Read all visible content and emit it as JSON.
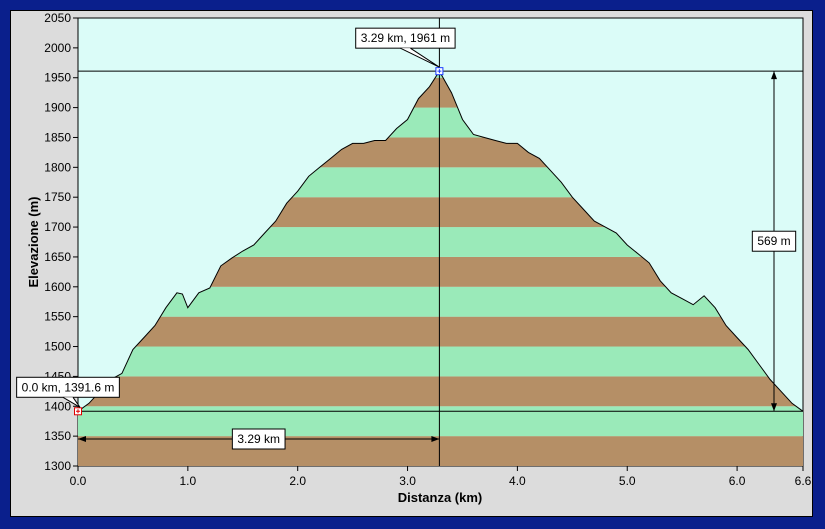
{
  "chart_data": {
    "type": "area",
    "xlabel": "Distanza  (km)",
    "ylabel": "Elevazione  (m)",
    "xlim": [
      0,
      6.6
    ],
    "ylim": [
      1300,
      2050
    ],
    "x_ticks": [
      "0.0",
      "1.0",
      "2.0",
      "3.0",
      "4.0",
      "5.0",
      "6.0",
      "6.6"
    ],
    "x_tick_values": [
      0,
      1,
      2,
      3,
      4,
      5,
      6,
      6.6
    ],
    "y_ticks": [
      1300,
      1350,
      1400,
      1450,
      1500,
      1550,
      1600,
      1650,
      1700,
      1750,
      1800,
      1850,
      1900,
      1950,
      2000,
      2050
    ],
    "band_colors": [
      "#b58f66",
      "#9aeab9"
    ],
    "background": "#dbfcf8",
    "x": [
      0,
      0.1,
      0.2,
      0.3,
      0.4,
      0.5,
      0.6,
      0.7,
      0.8,
      0.9,
      0.95,
      1.0,
      1.1,
      1.2,
      1.3,
      1.4,
      1.5,
      1.6,
      1.7,
      1.8,
      1.9,
      2.0,
      2.1,
      2.2,
      2.3,
      2.4,
      2.5,
      2.6,
      2.7,
      2.8,
      2.9,
      3.0,
      3.1,
      3.2,
      3.29,
      3.4,
      3.5,
      3.6,
      3.7,
      3.8,
      3.9,
      4.0,
      4.1,
      4.2,
      4.3,
      4.4,
      4.5,
      4.6,
      4.7,
      4.8,
      4.9,
      5.0,
      5.1,
      5.2,
      5.3,
      5.4,
      5.5,
      5.6,
      5.7,
      5.8,
      5.9,
      6.0,
      6.1,
      6.2,
      6.3,
      6.4,
      6.5,
      6.6
    ],
    "y": [
      1391.6,
      1405,
      1425,
      1445,
      1455,
      1495,
      1515,
      1535,
      1565,
      1590,
      1588,
      1565,
      1590,
      1598,
      1635,
      1648,
      1660,
      1670,
      1690,
      1710,
      1740,
      1760,
      1785,
      1800,
      1815,
      1830,
      1840,
      1840,
      1845,
      1845,
      1865,
      1880,
      1915,
      1935,
      1961,
      1925,
      1880,
      1855,
      1850,
      1845,
      1840,
      1840,
      1825,
      1815,
      1795,
      1775,
      1750,
      1730,
      1710,
      1700,
      1690,
      1670,
      1655,
      1640,
      1610,
      1590,
      1580,
      1570,
      1585,
      1565,
      1535,
      1515,
      1495,
      1470,
      1445,
      1425,
      1405,
      1391.6
    ],
    "cursor_x": 3.29,
    "ref_y": 1391.6,
    "peak_label": "3.29 km, 1961 m",
    "start_label": "0.0 km, 1391.6 m",
    "dist_label": "3.29 km",
    "rise_label": "569 m"
  }
}
